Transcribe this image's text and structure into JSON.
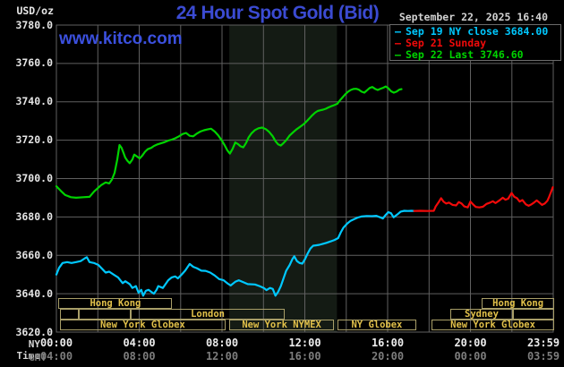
{
  "header": {
    "unit_label": "USD/oz",
    "title": "24 Hour Spot Gold (Bid)",
    "datetime": "September 22, 2025 16:40",
    "watermark": "www.kitco.com"
  },
  "legend": {
    "items": [
      {
        "text": "Sep 19 NY close 3684.00",
        "color": "#00c8ff"
      },
      {
        "text": "Sep 21 Sunday",
        "color": "#f20a0a"
      },
      {
        "text": "Sep 22 Last 3746.60",
        "color": "#00d300"
      }
    ]
  },
  "axes": {
    "ny_time_label": "NY Time",
    "gmt_label": "GMT",
    "ny_ticks": [
      {
        "t": 0,
        "text": "00:00"
      },
      {
        "t": 4,
        "text": "04:00"
      },
      {
        "t": 8,
        "text": "08:00"
      },
      {
        "t": 12,
        "text": "12:00"
      },
      {
        "t": 16,
        "text": "16:00"
      },
      {
        "t": 20,
        "text": "20:00"
      },
      {
        "t": 23.983,
        "text": "23:59"
      }
    ],
    "gmt_ticks": [
      {
        "t": 0,
        "text": "04:00"
      },
      {
        "t": 4,
        "text": "08:00"
      },
      {
        "t": 8,
        "text": "12:00"
      },
      {
        "t": 12,
        "text": "16:00"
      },
      {
        "t": 16,
        "text": "20:00"
      },
      {
        "t": 20,
        "text": "00:00"
      },
      {
        "t": 23.983,
        "text": "03:59"
      }
    ],
    "y_ticks": [
      "3780.0",
      "3760.0",
      "3740.0",
      "3720.0",
      "3700.0",
      "3680.0",
      "3660.0",
      "3640.0",
      "3620.0"
    ]
  },
  "sessions": {
    "rows": [
      {
        "boxes": [
          {
            "label": "Hong Kong",
            "start": 0.1,
            "end": 5.6
          },
          {
            "label": "Hong Kong",
            "start": 20.55,
            "end": 24.05
          }
        ]
      },
      {
        "boxes": [
          {
            "label": "",
            "start": 0.17,
            "end": 1.08
          },
          {
            "label": "",
            "start": 1.08,
            "end": 3.59
          },
          {
            "label": "London",
            "start": 3.59,
            "end": 11.03
          },
          {
            "label": "Sydney",
            "start": 19.03,
            "end": 22.05
          },
          {
            "label": "",
            "start": 22.05,
            "end": 24.05
          }
        ]
      },
      {
        "boxes": [
          {
            "label": "New York Globex",
            "start": 0.17,
            "end": 8.17
          },
          {
            "label": "New York NYMEX",
            "start": 8.35,
            "end": 13.41
          },
          {
            "label": "NY Globex",
            "start": 13.58,
            "end": 17.38
          },
          {
            "label": "New York Globex",
            "start": 18.12,
            "end": 24.05
          }
        ]
      }
    ]
  },
  "colors": {
    "background": "#000000",
    "grid": "#606060",
    "border": "#6b6b6b",
    "nymex_band": "#141b14",
    "title_blue": "#3b4bd2",
    "watermark_blue": "#3b50de",
    "session_gold": "#e2c14a",
    "session_border": "#a89e68",
    "cyan": "#00c8ff",
    "red": "#f20a0a",
    "green": "#00d300"
  },
  "chart_data": {
    "type": "line",
    "title": "24 Hour Spot Gold (Bid)",
    "xlabel": "NY Time (hours)",
    "ylabel": "USD/oz",
    "xlim": [
      0,
      24
    ],
    "ylim": [
      3620,
      3780
    ],
    "grid_x_step_hours": 2,
    "grid_y_step": 20,
    "nymex_band_hours": [
      8.35,
      13.55
    ],
    "legend_position": "top-right",
    "series": [
      {
        "name": "Sep 19 NY close",
        "color": "#00c8ff",
        "points": [
          [
            0,
            3650
          ],
          [
            0.13,
            3653.5
          ],
          [
            0.3,
            3656
          ],
          [
            0.52,
            3656.5
          ],
          [
            0.73,
            3656
          ],
          [
            0.95,
            3656.5
          ],
          [
            1.17,
            3657
          ],
          [
            1.38,
            3658.5
          ],
          [
            1.47,
            3659
          ],
          [
            1.6,
            3656.5
          ],
          [
            1.81,
            3656
          ],
          [
            2.03,
            3655
          ],
          [
            2.25,
            3652.5
          ],
          [
            2.38,
            3651
          ],
          [
            2.55,
            3651.5
          ],
          [
            2.76,
            3650
          ],
          [
            2.98,
            3648.5
          ],
          [
            3.2,
            3645.5
          ],
          [
            3.33,
            3646.5
          ],
          [
            3.54,
            3645
          ],
          [
            3.67,
            3643
          ],
          [
            3.84,
            3644
          ],
          [
            3.97,
            3640.5
          ],
          [
            4.1,
            3642
          ],
          [
            4.19,
            3639
          ],
          [
            4.32,
            3641.5
          ],
          [
            4.45,
            3642
          ],
          [
            4.71,
            3640
          ],
          [
            4.84,
            3642
          ],
          [
            4.92,
            3644
          ],
          [
            5.14,
            3643
          ],
          [
            5.4,
            3647
          ],
          [
            5.57,
            3648.5
          ],
          [
            5.74,
            3649
          ],
          [
            5.87,
            3648
          ],
          [
            6.05,
            3650
          ],
          [
            6.22,
            3652
          ],
          [
            6.44,
            3655.5
          ],
          [
            6.61,
            3654
          ],
          [
            6.78,
            3653.3
          ],
          [
            7,
            3652
          ],
          [
            7.21,
            3651.9
          ],
          [
            7.43,
            3651
          ],
          [
            7.65,
            3649.5
          ],
          [
            7.86,
            3647.6
          ],
          [
            8.08,
            3647
          ],
          [
            8.29,
            3645.2
          ],
          [
            8.42,
            3644.3
          ],
          [
            8.64,
            3646.2
          ],
          [
            8.81,
            3647
          ],
          [
            9.03,
            3646
          ],
          [
            9.24,
            3645
          ],
          [
            9.59,
            3644.8
          ],
          [
            9.81,
            3644
          ],
          [
            10.02,
            3643
          ],
          [
            10.15,
            3641.9
          ],
          [
            10.32,
            3643
          ],
          [
            10.45,
            3642.5
          ],
          [
            10.58,
            3639
          ],
          [
            10.71,
            3641
          ],
          [
            10.84,
            3644
          ],
          [
            10.97,
            3648
          ],
          [
            11.1,
            3652
          ],
          [
            11.27,
            3655
          ],
          [
            11.4,
            3658
          ],
          [
            11.49,
            3659.5
          ],
          [
            11.62,
            3657
          ],
          [
            11.75,
            3656
          ],
          [
            11.88,
            3655.7
          ],
          [
            12.01,
            3658
          ],
          [
            12.14,
            3661
          ],
          [
            12.27,
            3663.5
          ],
          [
            12.4,
            3665
          ],
          [
            12.53,
            3665.2
          ],
          [
            12.7,
            3665.5
          ],
          [
            12.87,
            3666
          ],
          [
            13.04,
            3666.5
          ],
          [
            13.26,
            3667.3
          ],
          [
            13.43,
            3668
          ],
          [
            13.61,
            3669
          ],
          [
            13.74,
            3672
          ],
          [
            13.87,
            3674.5
          ],
          [
            14.04,
            3676.5
          ],
          [
            14.21,
            3678
          ],
          [
            14.38,
            3678.8
          ],
          [
            14.56,
            3679.7
          ],
          [
            14.73,
            3680.2
          ],
          [
            14.99,
            3680.5
          ],
          [
            15.25,
            3680.4
          ],
          [
            15.46,
            3680.6
          ],
          [
            15.64,
            3679.8
          ],
          [
            15.77,
            3679.2
          ],
          [
            15.9,
            3681
          ],
          [
            16.03,
            3682.5
          ],
          [
            16.16,
            3682
          ],
          [
            16.29,
            3679.8
          ],
          [
            16.46,
            3681.2
          ],
          [
            16.63,
            3682.8
          ],
          [
            16.8,
            3683.2
          ],
          [
            16.98,
            3683.1
          ],
          [
            17.15,
            3683.2
          ],
          [
            17.28,
            3683.1
          ]
        ]
      },
      {
        "name": "Sep 21 Sunday",
        "color": "#f20a0a",
        "points": [
          [
            17.28,
            3683.1
          ],
          [
            17.58,
            3683.2
          ],
          [
            17.93,
            3683.1
          ],
          [
            18.23,
            3683.2
          ],
          [
            18.32,
            3685.5
          ],
          [
            18.45,
            3687.5
          ],
          [
            18.58,
            3689.8
          ],
          [
            18.7,
            3688
          ],
          [
            18.83,
            3687
          ],
          [
            18.96,
            3687.5
          ],
          [
            19.14,
            3686.3
          ],
          [
            19.31,
            3686
          ],
          [
            19.44,
            3687.8
          ],
          [
            19.57,
            3687
          ],
          [
            19.7,
            3685.5
          ],
          [
            19.87,
            3685
          ],
          [
            20,
            3688
          ],
          [
            20.13,
            3686.5
          ],
          [
            20.26,
            3685.2
          ],
          [
            20.43,
            3685
          ],
          [
            20.6,
            3685.3
          ],
          [
            20.78,
            3686.8
          ],
          [
            20.95,
            3687.5
          ],
          [
            21.08,
            3688.2
          ],
          [
            21.21,
            3687.2
          ],
          [
            21.38,
            3688.5
          ],
          [
            21.56,
            3690
          ],
          [
            21.69,
            3689
          ],
          [
            21.82,
            3689.5
          ],
          [
            21.99,
            3692.5
          ],
          [
            22.12,
            3690.5
          ],
          [
            22.25,
            3689.8
          ],
          [
            22.38,
            3688
          ],
          [
            22.51,
            3688.8
          ],
          [
            22.68,
            3686.5
          ],
          [
            22.81,
            3685.8
          ],
          [
            22.94,
            3686.5
          ],
          [
            23.07,
            3687.5
          ],
          [
            23.2,
            3688.6
          ],
          [
            23.33,
            3687.5
          ],
          [
            23.46,
            3686.3
          ],
          [
            23.59,
            3687
          ],
          [
            23.72,
            3688.5
          ],
          [
            23.8,
            3690.5
          ],
          [
            23.89,
            3693
          ],
          [
            23.98,
            3695.5
          ]
        ]
      },
      {
        "name": "Sep 22 Last",
        "color": "#00d300",
        "points": [
          [
            0,
            3696
          ],
          [
            0.22,
            3693.5
          ],
          [
            0.43,
            3691.4
          ],
          [
            0.7,
            3690.3
          ],
          [
            0.95,
            3690
          ],
          [
            1.3,
            3690.3
          ],
          [
            1.6,
            3690.5
          ],
          [
            1.82,
            3693.3
          ],
          [
            2.16,
            3696.6
          ],
          [
            2.38,
            3698
          ],
          [
            2.55,
            3697.5
          ],
          [
            2.68,
            3699.5
          ],
          [
            2.81,
            3703
          ],
          [
            2.94,
            3710
          ],
          [
            3.05,
            3717.5
          ],
          [
            3.15,
            3716
          ],
          [
            3.24,
            3713.5
          ],
          [
            3.32,
            3711
          ],
          [
            3.43,
            3709.3
          ],
          [
            3.54,
            3708
          ],
          [
            3.67,
            3710
          ],
          [
            3.76,
            3712.5
          ],
          [
            3.89,
            3711.5
          ],
          [
            4.02,
            3710.5
          ],
          [
            4.15,
            3712
          ],
          [
            4.28,
            3714
          ],
          [
            4.41,
            3715.3
          ],
          [
            4.58,
            3716
          ],
          [
            4.71,
            3717
          ],
          [
            4.88,
            3717.8
          ],
          [
            5.05,
            3718.4
          ],
          [
            5.23,
            3719
          ],
          [
            5.4,
            3719.8
          ],
          [
            5.57,
            3720.3
          ],
          [
            5.74,
            3721
          ],
          [
            5.92,
            3722
          ],
          [
            6.09,
            3723.2
          ],
          [
            6.26,
            3723.8
          ],
          [
            6.44,
            3722.3
          ],
          [
            6.61,
            3722
          ],
          [
            6.78,
            3723.4
          ],
          [
            6.95,
            3724.5
          ],
          [
            7.13,
            3725.2
          ],
          [
            7.3,
            3725.6
          ],
          [
            7.47,
            3726
          ],
          [
            7.65,
            3724.5
          ],
          [
            7.82,
            3722.5
          ],
          [
            7.99,
            3719.8
          ],
          [
            8.12,
            3717.5
          ],
          [
            8.25,
            3714.8
          ],
          [
            8.38,
            3713
          ],
          [
            8.51,
            3715.5
          ],
          [
            8.64,
            3718.8
          ],
          [
            8.77,
            3718
          ],
          [
            8.9,
            3716.8
          ],
          [
            9.03,
            3716.3
          ],
          [
            9.16,
            3718.5
          ],
          [
            9.29,
            3721.5
          ],
          [
            9.42,
            3723.5
          ],
          [
            9.59,
            3725.3
          ],
          [
            9.76,
            3726.2
          ],
          [
            9.94,
            3726.6
          ],
          [
            10.11,
            3725.8
          ],
          [
            10.28,
            3724.3
          ],
          [
            10.45,
            3722
          ],
          [
            10.58,
            3719.5
          ],
          [
            10.71,
            3717.8
          ],
          [
            10.84,
            3717.2
          ],
          [
            10.97,
            3718.5
          ],
          [
            11.1,
            3720
          ],
          [
            11.27,
            3722.5
          ],
          [
            11.45,
            3724.3
          ],
          [
            11.58,
            3725.5
          ],
          [
            11.71,
            3726.5
          ],
          [
            11.84,
            3727.5
          ],
          [
            11.97,
            3728.6
          ],
          [
            12.1,
            3730
          ],
          [
            12.23,
            3731.5
          ],
          [
            12.36,
            3733
          ],
          [
            12.49,
            3734.3
          ],
          [
            12.62,
            3735.2
          ],
          [
            12.75,
            3735.6
          ],
          [
            12.88,
            3735.9
          ],
          [
            13.01,
            3736.4
          ],
          [
            13.14,
            3737.1
          ],
          [
            13.27,
            3737.7
          ],
          [
            13.4,
            3738.2
          ],
          [
            13.57,
            3739
          ],
          [
            13.7,
            3740.8
          ],
          [
            13.83,
            3742.4
          ],
          [
            13.96,
            3744
          ],
          [
            14.09,
            3745.3
          ],
          [
            14.22,
            3746.2
          ],
          [
            14.35,
            3746.7
          ],
          [
            14.48,
            3746.8
          ],
          [
            14.61,
            3746.3
          ],
          [
            14.74,
            3745.3
          ],
          [
            14.87,
            3744.8
          ],
          [
            15,
            3746
          ],
          [
            15.13,
            3747.2
          ],
          [
            15.26,
            3747.7
          ],
          [
            15.39,
            3746.8
          ],
          [
            15.52,
            3746.2
          ],
          [
            15.65,
            3746.8
          ],
          [
            15.78,
            3747.3
          ],
          [
            15.91,
            3748
          ],
          [
            16.04,
            3747
          ],
          [
            16.17,
            3745.5
          ],
          [
            16.3,
            3744.8
          ],
          [
            16.43,
            3745.3
          ],
          [
            16.56,
            3746.3
          ],
          [
            16.67,
            3746.6
          ]
        ]
      }
    ]
  }
}
